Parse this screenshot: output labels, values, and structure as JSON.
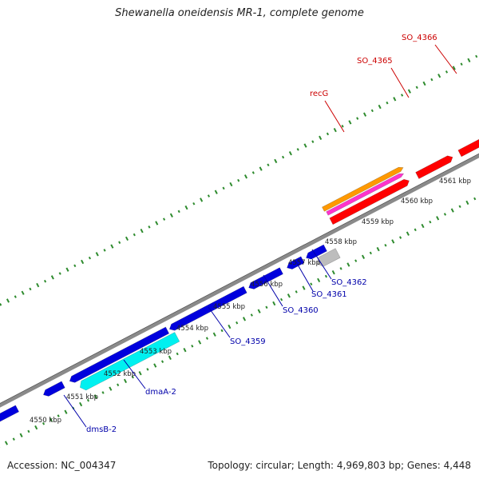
{
  "title": "Shewanella oneidensis MR-1, complete genome",
  "footer": {
    "accession": "Accession: NC_004347",
    "summary": "Topology: circular; Length: 4,969,803 bp; Genes: 4,448"
  },
  "colors": {
    "backbone": "#8a8a8a",
    "tick": "#2e8b2e",
    "forward_gene": "#ff0000",
    "reverse_gene": "#0000dd",
    "cyan_gene": "#00f0f0",
    "gray_gene": "#bdbdbd",
    "orange_gene": "#ff9900",
    "magenta_gene": "#ff33cc",
    "forward_label": "#cc0000",
    "reverse_label": "#0000aa"
  },
  "scale": {
    "ticks": [
      {
        "label": "4550 kbp"
      },
      {
        "label": "4551 kbp"
      },
      {
        "label": "4552 kbp"
      },
      {
        "label": "4553 kbp"
      },
      {
        "label": "4554 kbp"
      },
      {
        "label": "4555 kbp"
      },
      {
        "label": "4556 kbp"
      },
      {
        "label": "4557 kbp"
      },
      {
        "label": "4558 kbp"
      },
      {
        "label": "4559 kbp"
      },
      {
        "label": "4560 kbp"
      },
      {
        "label": "4561 kbp"
      }
    ]
  },
  "gene_labels": [
    {
      "text": "SO_4366",
      "strand": "forward"
    },
    {
      "text": "SO_4365",
      "strand": "forward"
    },
    {
      "text": "recG",
      "strand": "forward"
    },
    {
      "text": "SO_4362",
      "strand": "reverse"
    },
    {
      "text": "SO_4361",
      "strand": "reverse"
    },
    {
      "text": "SO_4360",
      "strand": "reverse"
    },
    {
      "text": "SO_4359",
      "strand": "reverse"
    },
    {
      "text": "dmaA-2",
      "strand": "reverse"
    },
    {
      "text": "dmsB-2",
      "strand": "reverse"
    }
  ]
}
